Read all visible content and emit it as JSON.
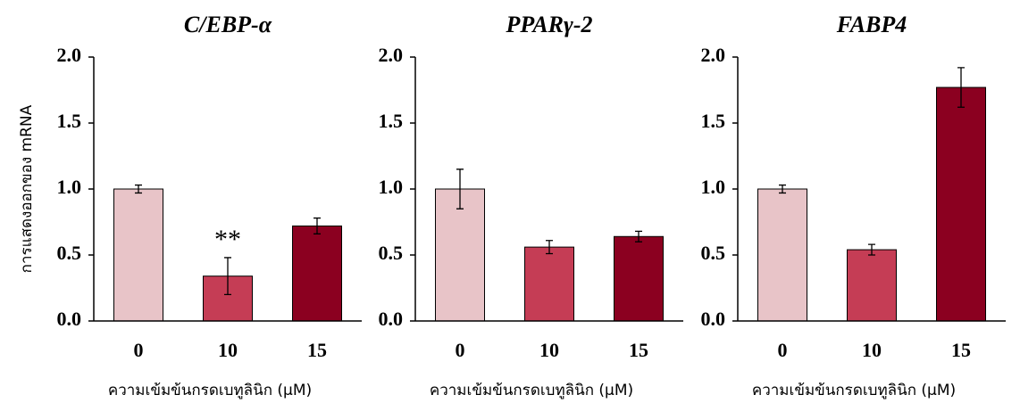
{
  "chart_data": [
    {
      "type": "bar",
      "title": "C/EBP-α",
      "ylabel": "การแสดงออกของ mRNA",
      "xlabel": "ความเข้มข้นกรดเบทูลินิก (µM)",
      "categories": [
        "0",
        "10",
        "15"
      ],
      "values": [
        1.0,
        0.34,
        0.72
      ],
      "errors": [
        0.03,
        0.14,
        0.06
      ],
      "annotations": [
        null,
        "**",
        null
      ],
      "colors": [
        "#e8c4c8",
        "#c53d55",
        "#8b0020"
      ],
      "ylim": [
        0,
        2
      ],
      "yticks": [
        {
          "value": 0,
          "label": "0.0"
        },
        {
          "value": 0.5,
          "label": "0.5"
        },
        {
          "value": 1,
          "label": "1.0"
        },
        {
          "value": 1.5,
          "label": "1.5"
        },
        {
          "value": 2,
          "label": "2.0"
        }
      ]
    },
    {
      "type": "bar",
      "title": "PPARγ-2",
      "xlabel": "ความเข้มข้นกรดเบทูลินิก (µM)",
      "categories": [
        "0",
        "10",
        "15"
      ],
      "values": [
        1.0,
        0.56,
        0.64
      ],
      "errors": [
        0.15,
        0.05,
        0.04
      ],
      "colors": [
        "#e8c4c8",
        "#c53d55",
        "#8b0020"
      ],
      "ylim": [
        0,
        2
      ],
      "yticks": [
        {
          "value": 0,
          "label": "0.0"
        },
        {
          "value": 0.5,
          "label": "0.5"
        },
        {
          "value": 1,
          "label": "1.0"
        },
        {
          "value": 1.5,
          "label": "1.5"
        },
        {
          "value": 2,
          "label": "2.0"
        }
      ]
    },
    {
      "type": "bar",
      "title": "FABP4",
      "xlabel": "ความเข้มข้นกรดเบทูลินิก (µM)",
      "categories": [
        "0",
        "10",
        "15"
      ],
      "values": [
        1.0,
        0.54,
        1.77
      ],
      "errors": [
        0.03,
        0.04,
        0.15
      ],
      "colors": [
        "#e8c4c8",
        "#c53d55",
        "#8b0020"
      ],
      "ylim": [
        0,
        2
      ],
      "yticks": [
        {
          "value": 0,
          "label": "0.0"
        },
        {
          "value": 0.5,
          "label": "0.5"
        },
        {
          "value": 1,
          "label": "1.0"
        },
        {
          "value": 1.5,
          "label": "1.5"
        },
        {
          "value": 2,
          "label": "2.0"
        }
      ]
    }
  ]
}
